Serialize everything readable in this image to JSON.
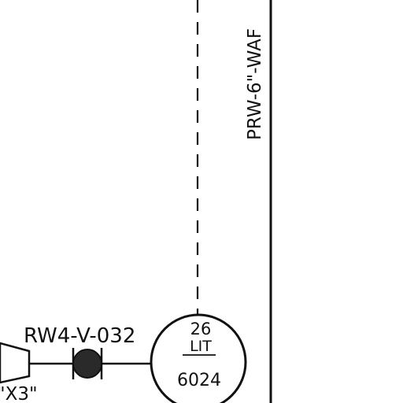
{
  "pipe_label": "PRW-6\"-WAF",
  "valve_tag": "RW4-V-032",
  "instrument": {
    "number": "26",
    "type": "LIT",
    "loop": "6024"
  },
  "connector_tag": "\"X3\"",
  "colors": {
    "ink": "#111111",
    "valve_fill": "#2a2a2a",
    "background": "#ffffff"
  }
}
